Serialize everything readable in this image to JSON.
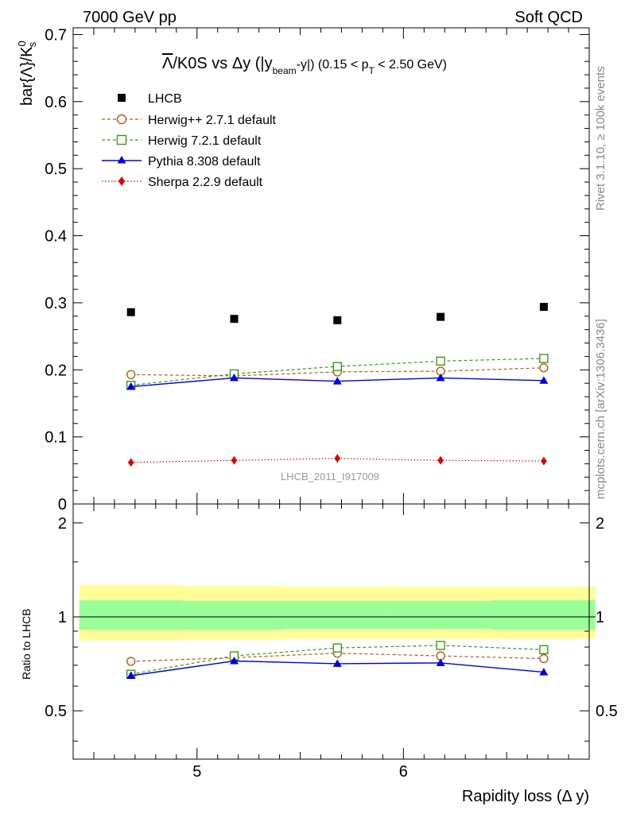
{
  "header": {
    "left": "7000 GeV pp",
    "right": "Soft QCD"
  },
  "side_labels": {
    "top": "Rivet 3.1.10, ≥ 100k events",
    "bottom": "mcplots.cern.ch [arXiv:1306.3436]"
  },
  "watermark": "LHCB_2011_I917009",
  "chart_data": [
    {
      "type": "scatter",
      "title": "Λ̅/K0S vs Δy (|y_beam-y|) (0.15 < p_T < 2.50 GeV)",
      "title_parts": {
        "lambda_bar": "Λ",
        "main": "/K0S vs Δy (|y",
        "beam_sub": "beam",
        "mid": "-y|) (0.15 < p",
        "t_sub": "T",
        "tail": " < 2.50 GeV)"
      },
      "ylabel": "bar{Λ}/K",
      "ylabel_sup": "0",
      "ylabel_sub": "s",
      "xlim": [
        4.4,
        6.9
      ],
      "ylim": [
        0,
        0.71
      ],
      "yticks": [
        "0",
        "0.1",
        "0.2",
        "0.3",
        "0.4",
        "0.5",
        "0.6",
        "0.7"
      ],
      "x": [
        4.68,
        5.18,
        5.68,
        6.18,
        6.68
      ],
      "legend_position": "top-left",
      "series": [
        {
          "name": "LHCB",
          "color": "#000000",
          "marker": "square-filled",
          "line": "none",
          "values": [
            0.286,
            0.276,
            0.274,
            0.279,
            0.294
          ]
        },
        {
          "name": "Herwig++ 2.7.1 default",
          "color": "#b05f15",
          "marker": "circle-open",
          "line": "dashed",
          "values": [
            0.193,
            0.191,
            0.197,
            0.198,
            0.203
          ]
        },
        {
          "name": "Herwig 7.2.1 default",
          "color": "#3a9a1a",
          "marker": "square-open",
          "line": "dashed",
          "values": [
            0.177,
            0.194,
            0.205,
            0.213,
            0.217
          ]
        },
        {
          "name": "Pythia 8.308 default",
          "color": "#0000dd",
          "marker": "triangle-filled",
          "line": "solid",
          "values": [
            0.175,
            0.188,
            0.183,
            0.188,
            0.184
          ]
        },
        {
          "name": "Sherpa 2.2.9 default",
          "color": "#e00000",
          "marker": "diamond-filled",
          "line": "dotted",
          "values": [
            0.062,
            0.065,
            0.068,
            0.065,
            0.064
          ]
        }
      ]
    },
    {
      "type": "scatter",
      "ylabel": "Ratio to LHCB",
      "xlabel": "Rapidity loss (Δ y)",
      "xlim": [
        4.4,
        6.9
      ],
      "xticks": [
        "5",
        "6"
      ],
      "ylim": [
        0.35,
        2.3
      ],
      "yscale": "log",
      "yticks": [
        "0.5",
        "1",
        "2"
      ],
      "x": [
        4.68,
        5.18,
        5.68,
        6.18,
        6.68
      ],
      "bins": [
        [
          4.43,
          4.93
        ],
        [
          4.93,
          5.43
        ],
        [
          5.43,
          5.93
        ],
        [
          5.93,
          6.43
        ],
        [
          6.43,
          6.93
        ]
      ],
      "band_outer": {
        "color": "#ffff99",
        "lo": [
          0.84,
          0.845,
          0.85,
          0.85,
          0.85
        ],
        "hi": [
          1.265,
          1.255,
          1.25,
          1.25,
          1.25
        ]
      },
      "band_inner": {
        "color": "#99ff99",
        "lo": [
          0.91,
          0.91,
          0.915,
          0.915,
          0.91
        ],
        "hi": [
          1.13,
          1.125,
          1.125,
          1.125,
          1.13
        ]
      },
      "series": [
        {
          "name": "Herwig++ 2.7.1 default",
          "color": "#b05f15",
          "marker": "circle-open",
          "line": "dashed",
          "values": [
            0.72,
            0.74,
            0.765,
            0.75,
            0.735
          ]
        },
        {
          "name": "Herwig 7.2.1 default",
          "color": "#3a9a1a",
          "marker": "square-open",
          "line": "dashed",
          "values": [
            0.655,
            0.75,
            0.795,
            0.81,
            0.785
          ]
        },
        {
          "name": "Pythia 8.308 default",
          "color": "#0000dd",
          "marker": "triangle-filled",
          "line": "solid",
          "values": [
            0.648,
            0.722,
            0.708,
            0.712,
            0.665
          ]
        }
      ]
    }
  ]
}
